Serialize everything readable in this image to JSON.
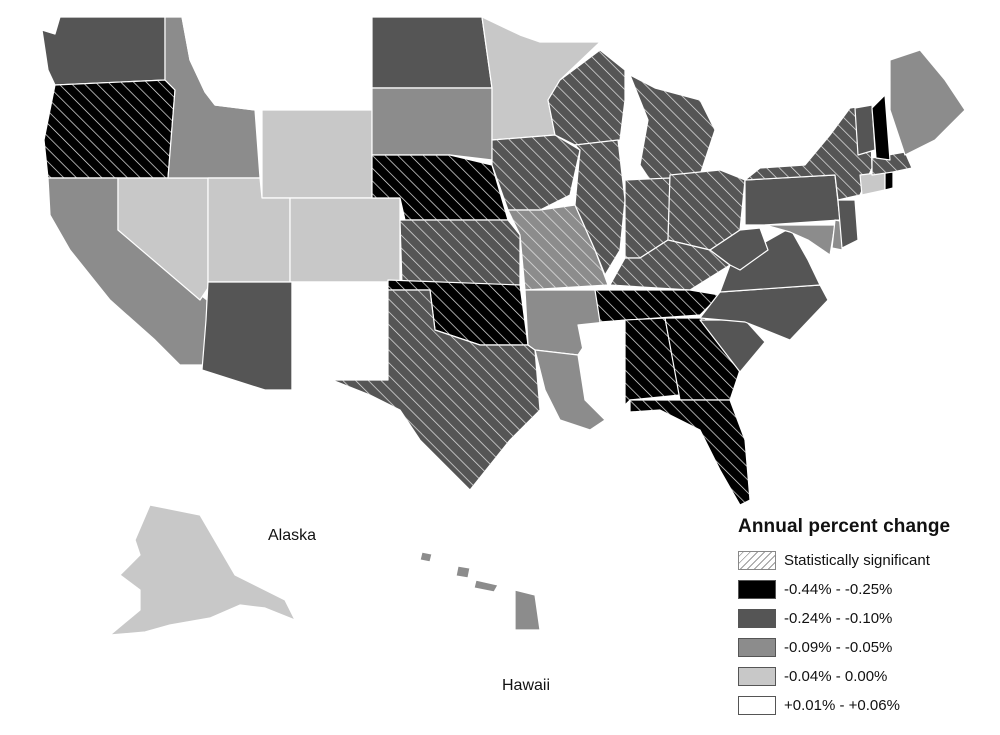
{
  "map": {
    "region_labels": {
      "alaska": "Alaska",
      "hawaii": "Hawaii"
    },
    "class_colors": {
      "c1": "#000000",
      "c2": "#555555",
      "c3": "#8c8c8c",
      "c4": "#c8c8c8",
      "c5": "#ffffff"
    },
    "hatch_color": "#e8e8e8",
    "states": [
      {
        "id": "WA",
        "class": "c2",
        "significant": false
      },
      {
        "id": "OR",
        "class": "c1",
        "significant": true
      },
      {
        "id": "CA",
        "class": "c3",
        "significant": false
      },
      {
        "id": "NV",
        "class": "c4",
        "significant": false
      },
      {
        "id": "ID",
        "class": "c3",
        "significant": false
      },
      {
        "id": "MT",
        "class": "c5",
        "significant": false
      },
      {
        "id": "WY",
        "class": "c4",
        "significant": false
      },
      {
        "id": "UT",
        "class": "c4",
        "significant": false
      },
      {
        "id": "CO",
        "class": "c4",
        "significant": false
      },
      {
        "id": "AZ",
        "class": "c2",
        "significant": false
      },
      {
        "id": "NM",
        "class": "c5",
        "significant": false
      },
      {
        "id": "ND",
        "class": "c2",
        "significant": false
      },
      {
        "id": "SD",
        "class": "c3",
        "significant": false
      },
      {
        "id": "NE",
        "class": "c1",
        "significant": true
      },
      {
        "id": "KS",
        "class": "c2",
        "significant": true
      },
      {
        "id": "OK",
        "class": "c1",
        "significant": true
      },
      {
        "id": "TX",
        "class": "c2",
        "significant": true
      },
      {
        "id": "MN",
        "class": "c4",
        "significant": false
      },
      {
        "id": "IA",
        "class": "c2",
        "significant": true
      },
      {
        "id": "MO",
        "class": "c3",
        "significant": true
      },
      {
        "id": "AR",
        "class": "c3",
        "significant": false
      },
      {
        "id": "LA",
        "class": "c3",
        "significant": false
      },
      {
        "id": "WI",
        "class": "c2",
        "significant": true
      },
      {
        "id": "IL",
        "class": "c2",
        "significant": true
      },
      {
        "id": "MI",
        "class": "c2",
        "significant": true
      },
      {
        "id": "IN",
        "class": "c2",
        "significant": true
      },
      {
        "id": "OH",
        "class": "c2",
        "significant": true
      },
      {
        "id": "KY",
        "class": "c2",
        "significant": true
      },
      {
        "id": "TN",
        "class": "c1",
        "significant": true
      },
      {
        "id": "MS",
        "class": "c5",
        "significant": false
      },
      {
        "id": "AL",
        "class": "c1",
        "significant": true
      },
      {
        "id": "GA",
        "class": "c1",
        "significant": true
      },
      {
        "id": "FL",
        "class": "c1",
        "significant": true
      },
      {
        "id": "SC",
        "class": "c2",
        "significant": false
      },
      {
        "id": "NC",
        "class": "c2",
        "significant": false
      },
      {
        "id": "VA",
        "class": "c2",
        "significant": false
      },
      {
        "id": "WV",
        "class": "c2",
        "significant": false
      },
      {
        "id": "PA",
        "class": "c2",
        "significant": false
      },
      {
        "id": "NY",
        "class": "c2",
        "significant": true
      },
      {
        "id": "MD",
        "class": "c3",
        "significant": false
      },
      {
        "id": "DE",
        "class": "c3",
        "significant": false
      },
      {
        "id": "NJ",
        "class": "c2",
        "significant": false
      },
      {
        "id": "CT",
        "class": "c4",
        "significant": false
      },
      {
        "id": "RI",
        "class": "c1",
        "significant": false
      },
      {
        "id": "MA",
        "class": "c2",
        "significant": true
      },
      {
        "id": "VT",
        "class": "c2",
        "significant": false
      },
      {
        "id": "NH",
        "class": "c1",
        "significant": false
      },
      {
        "id": "ME",
        "class": "c3",
        "significant": false
      },
      {
        "id": "AK",
        "class": "c4",
        "significant": false
      },
      {
        "id": "HI",
        "class": "c3",
        "significant": false
      }
    ]
  },
  "legend": {
    "title": "Annual percent change",
    "items": [
      {
        "label": "Statistically significant",
        "kind": "hatch"
      },
      {
        "label": "-0.44% - -0.25%",
        "kind": "c1"
      },
      {
        "label": "-0.24% - -0.10%",
        "kind": "c2"
      },
      {
        "label": "-0.09% - -0.05%",
        "kind": "c3"
      },
      {
        "label": "-0.04% - 0.00%",
        "kind": "c4"
      },
      {
        "label": "+0.01% - +0.06%",
        "kind": "c5"
      }
    ]
  }
}
